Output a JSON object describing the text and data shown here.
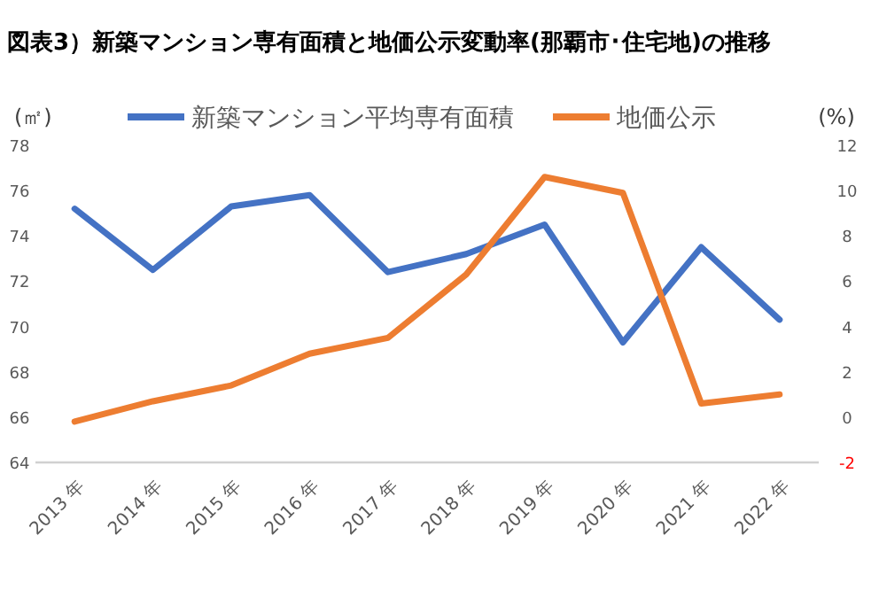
{
  "chart_data": {
    "type": "line",
    "title": "図表3）新築マンション専有面積と地価公示変動率(那覇市･住宅地)の推移",
    "ylabel": "(㎡)",
    "y2label": "(%)",
    "categories": [
      "2013 年",
      "2014 年",
      "2015 年",
      "2016 年",
      "2017 年",
      "2018 年",
      "2019 年",
      "2020 年",
      "2021 年",
      "2022 年"
    ],
    "ylim": [
      64,
      78
    ],
    "yticks": [
      64,
      66,
      68,
      70,
      72,
      74,
      76,
      78
    ],
    "y2lim": [
      -2,
      12
    ],
    "y2ticks": [
      -2,
      0,
      2,
      4,
      6,
      8,
      10,
      12
    ],
    "legend": "top",
    "grid": false,
    "series": [
      {
        "name": "新築マンション平均専有面積",
        "color": "#4472c4",
        "values": [
          75.2,
          72.5,
          75.3,
          75.8,
          72.4,
          73.2,
          74.5,
          69.3,
          73.5,
          70.3
        ]
      },
      {
        "name": "地価公示",
        "color": "#ed7d31",
        "axis": "y2",
        "values": [
          -0.2,
          0.7,
          1.4,
          2.8,
          3.5,
          6.3,
          10.6,
          9.9,
          0.6,
          1.0
        ]
      }
    ]
  }
}
